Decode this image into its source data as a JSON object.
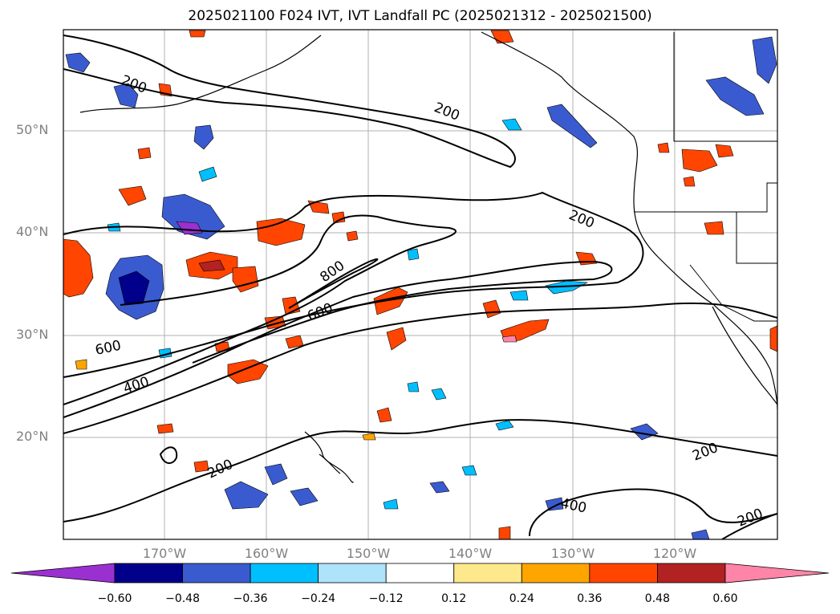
{
  "title": "2025021100 F024 IVT, IVT Landfall PC (2025021312 - 2025021500)",
  "lat_labels": [
    "50°N",
    "40°N",
    "30°N",
    "20°N"
  ],
  "lon_labels": [
    "170°W",
    "160°W",
    "150°W",
    "140°W",
    "130°W",
    "120°W"
  ],
  "contour_labels": [
    "200",
    "200",
    "200",
    "200",
    "200",
    "200",
    "400",
    "400",
    "600",
    "600",
    "800"
  ],
  "colorbar": {
    "tick_labels": [
      "−0.60",
      "−0.48",
      "−0.36",
      "−0.24",
      "−0.12",
      "0.12",
      "0.24",
      "0.36",
      "0.48",
      "0.60"
    ],
    "colors": [
      "#9b30d0",
      "#00008b",
      "#3a5bd0",
      "#00bfff",
      "#aee3fa",
      "#ffffff",
      "#fde98b",
      "#ffa500",
      "#ff4500",
      "#b22222",
      "#ff85a8"
    ]
  }
}
